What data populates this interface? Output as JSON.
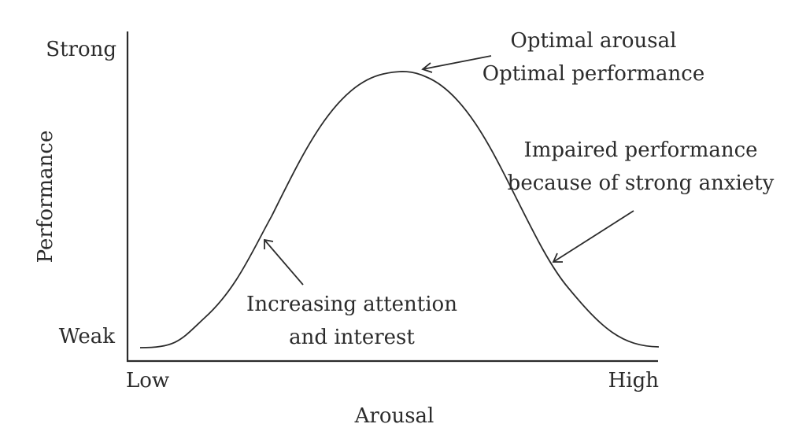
{
  "diagram": {
    "y_axis_title": "Performance",
    "y_top_label": "Strong",
    "y_bottom_label": "Weak",
    "x_axis_title": "Arousal",
    "x_left_label": "Low",
    "x_right_label": "High",
    "annotations": {
      "peak_line1": "Optimal arousal",
      "peak_line2": "Optimal performance",
      "right_line1": "Impaired performance",
      "right_line2": "because of strong anxiety",
      "left_line1": "Increasing attention",
      "left_line2": "and interest"
    },
    "colors": {
      "ink": "#2b2b2b",
      "background": "#ffffff"
    }
  }
}
